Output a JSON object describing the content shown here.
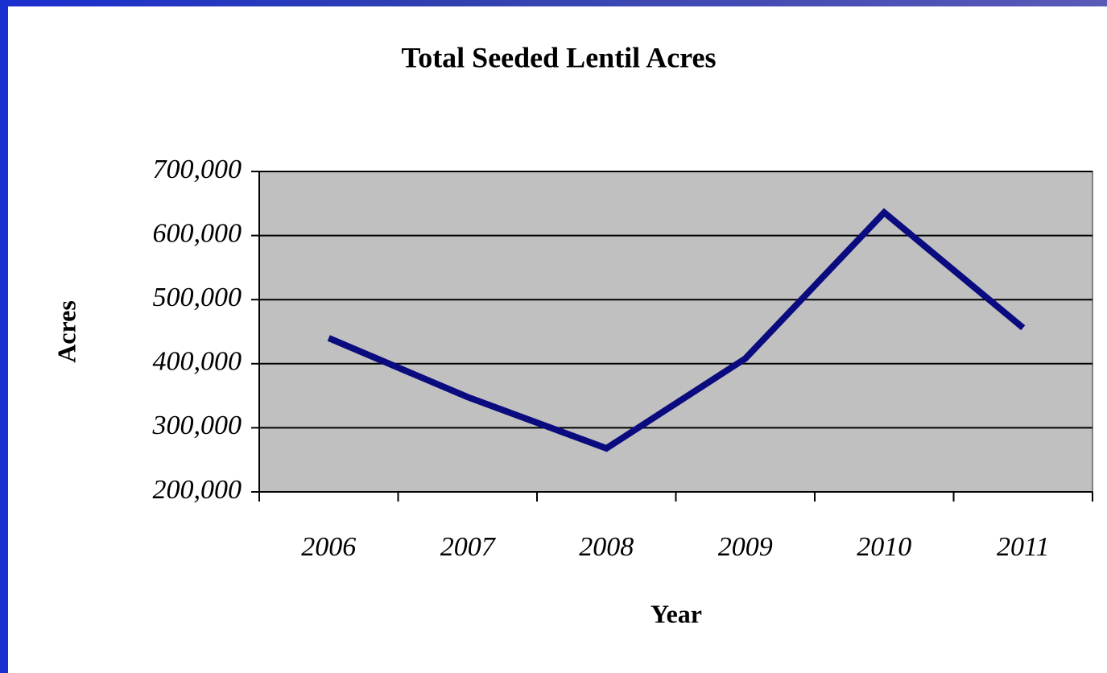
{
  "chart_data": {
    "type": "line",
    "title": "Total Seeded Lentil Acres",
    "x_label": "Year",
    "y_label": "Acres",
    "categories": [
      "2006",
      "2007",
      "2008",
      "2009",
      "2010",
      "2011"
    ],
    "series": [
      {
        "name": "Acres",
        "color": "#0b0b80",
        "values": [
          440000,
          348000,
          268000,
          408000,
          636000,
          456000
        ]
      }
    ],
    "ylim": [
      200000,
      700000
    ],
    "yticks": [
      {
        "value": 200000,
        "label": "200,000"
      },
      {
        "value": 300000,
        "label": "300,000"
      },
      {
        "value": 400000,
        "label": "400,000"
      },
      {
        "value": 500000,
        "label": "500,000"
      },
      {
        "value": 600000,
        "label": "600,000"
      },
      {
        "value": 700000,
        "label": "700,000"
      }
    ],
    "grid": true,
    "plot_background": "#c0c0c0"
  }
}
